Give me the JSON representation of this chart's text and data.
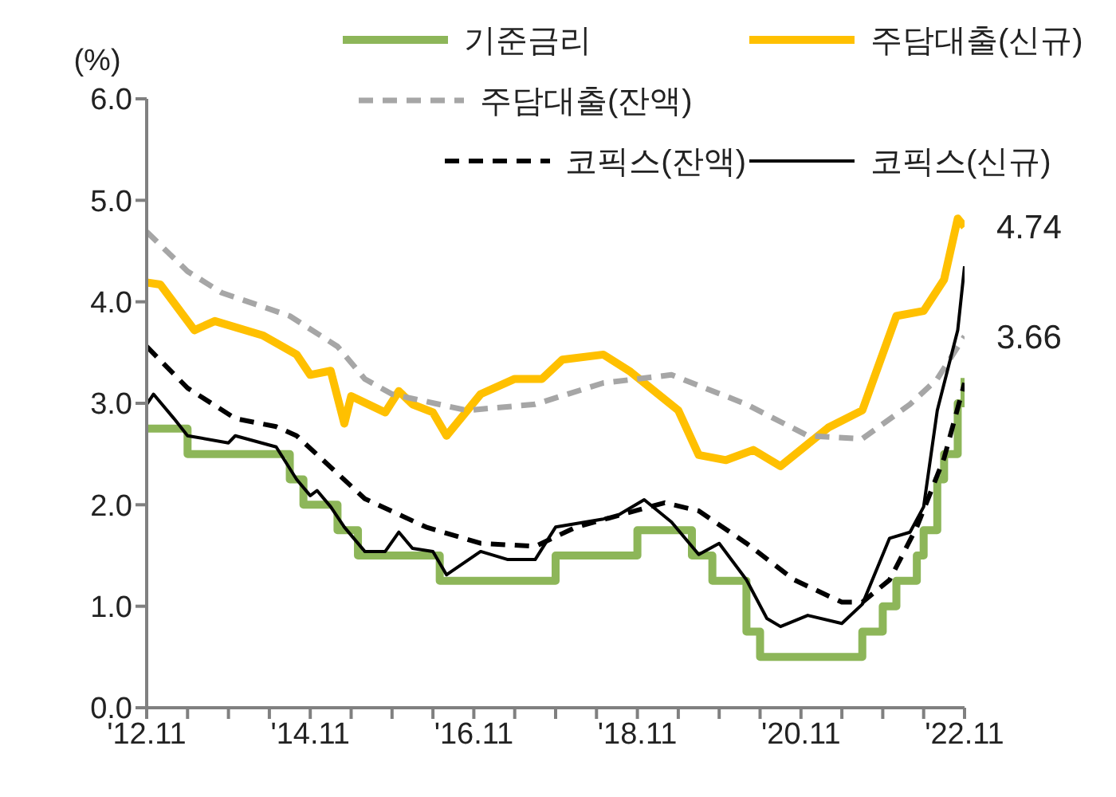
{
  "chart_data": {
    "type": "line",
    "ylabel": "(%)",
    "xlim": [
      "2012-11",
      "2022-11"
    ],
    "xticks": [
      {
        "value": "2012-11",
        "label": "'12.11"
      },
      {
        "value": "2013-05",
        "label": null
      },
      {
        "value": "2013-11",
        "label": null
      },
      {
        "value": "2014-05",
        "label": null
      },
      {
        "value": "2014-11",
        "label": "'14.11"
      },
      {
        "value": "2015-05",
        "label": null
      },
      {
        "value": "2015-11",
        "label": null
      },
      {
        "value": "2016-05",
        "label": null
      },
      {
        "value": "2016-11",
        "label": "'16.11"
      },
      {
        "value": "2017-05",
        "label": null
      },
      {
        "value": "2017-11",
        "label": null
      },
      {
        "value": "2018-05",
        "label": null
      },
      {
        "value": "2018-11",
        "label": "'18.11"
      },
      {
        "value": "2019-05",
        "label": null
      },
      {
        "value": "2019-11",
        "label": null
      },
      {
        "value": "2020-05",
        "label": null
      },
      {
        "value": "2020-11",
        "label": "'20.11"
      },
      {
        "value": "2021-05",
        "label": null
      },
      {
        "value": "2021-11",
        "label": null
      },
      {
        "value": "2022-05",
        "label": null
      },
      {
        "value": "2022-11",
        "label": "'22.11"
      }
    ],
    "ylim": [
      0,
      6
    ],
    "yticks": [
      {
        "value": 0,
        "label": "0.0"
      },
      {
        "value": 1,
        "label": "1.0"
      },
      {
        "value": 2,
        "label": "2.0"
      },
      {
        "value": 3,
        "label": "3.0"
      },
      {
        "value": 4,
        "label": "4.0"
      },
      {
        "value": 5,
        "label": "5.0"
      },
      {
        "value": 6,
        "label": "6.0"
      }
    ],
    "grid": false,
    "legend": "top",
    "marker": "none",
    "series": [
      {
        "name": "기준금리",
        "type": "step",
        "color": "#8db659",
        "line_style": "solid",
        "x": [
          "2012-11",
          "2013-05",
          "2014-08",
          "2014-10",
          "2015-03",
          "2015-06",
          "2016-06",
          "2017-11",
          "2018-11",
          "2019-07",
          "2019-10",
          "2020-03",
          "2020-05",
          "2021-08",
          "2021-11",
          "2022-01",
          "2022-04",
          "2022-05",
          "2022-07",
          "2022-08",
          "2022-10",
          "2022-11"
        ],
        "values": [
          2.75,
          2.5,
          2.25,
          2.0,
          1.75,
          1.5,
          1.25,
          1.5,
          1.75,
          1.5,
          1.25,
          0.75,
          0.5,
          0.75,
          1.0,
          1.25,
          1.5,
          1.75,
          2.25,
          2.5,
          3.0,
          3.25
        ]
      },
      {
        "name": "주담대출(신규)",
        "color": "#ffc000",
        "line_style": "solid",
        "x": [
          "2012-11",
          "2013-01",
          "2013-06",
          "2013-09",
          "2014-04",
          "2014-09",
          "2014-11",
          "2015-02",
          "2015-04",
          "2015-05",
          "2015-10",
          "2015-12",
          "2016-02",
          "2016-05",
          "2016-07",
          "2016-12",
          "2017-05",
          "2017-09",
          "2017-12",
          "2018-06",
          "2018-10",
          "2019-05",
          "2019-08",
          "2019-12",
          "2020-04",
          "2020-08",
          "2021-03",
          "2021-08",
          "2022-01",
          "2022-05",
          "2022-08",
          "2022-10",
          "2022-11"
        ],
        "values": [
          4.19,
          4.17,
          3.72,
          3.81,
          3.67,
          3.48,
          3.28,
          3.32,
          2.8,
          3.07,
          2.91,
          3.12,
          2.99,
          2.91,
          2.68,
          3.09,
          3.24,
          3.24,
          3.43,
          3.48,
          3.31,
          2.93,
          2.49,
          2.44,
          2.54,
          2.38,
          2.76,
          2.93,
          3.86,
          3.91,
          4.22,
          4.82,
          4.74
        ]
      },
      {
        "name": "주담대출(잔액)",
        "color": "#a6a6a6",
        "line_style": "dashed",
        "x": [
          "2012-11",
          "2013-05",
          "2013-10",
          "2014-08",
          "2015-03",
          "2015-07",
          "2015-11",
          "2016-10",
          "2017-08",
          "2018-06",
          "2019-04",
          "2020-03",
          "2020-12",
          "2021-08",
          "2022-03",
          "2022-07",
          "2022-11"
        ],
        "values": [
          4.69,
          4.3,
          4.09,
          3.86,
          3.56,
          3.24,
          3.09,
          2.93,
          2.99,
          3.2,
          3.28,
          2.99,
          2.68,
          2.65,
          2.99,
          3.24,
          3.66
        ]
      },
      {
        "name": "코픽스(잔액)",
        "color": "#000000",
        "line_style": "dashed",
        "x": [
          "2012-11",
          "2013-05",
          "2013-12",
          "2014-06",
          "2014-09",
          "2015-07",
          "2016-04",
          "2016-12",
          "2017-08",
          "2018-02",
          "2019-03",
          "2019-08",
          "2020-03",
          "2020-10",
          "2021-05",
          "2021-08",
          "2021-12",
          "2022-04",
          "2022-08",
          "2022-11"
        ],
        "values": [
          3.56,
          3.15,
          2.85,
          2.77,
          2.68,
          2.06,
          1.78,
          1.62,
          1.59,
          1.78,
          2.02,
          1.94,
          1.62,
          1.26,
          1.04,
          1.04,
          1.26,
          1.78,
          2.46,
          3.2
        ]
      },
      {
        "name": "코픽스(신규)",
        "color": "#000000",
        "line_style": "solid",
        "x": [
          "2012-11",
          "2012-12",
          "2013-03",
          "2013-05",
          "2013-11",
          "2013-12",
          "2014-06",
          "2014-09",
          "2014-11",
          "2014-12",
          "2015-02",
          "2015-04",
          "2015-07",
          "2015-10",
          "2015-12",
          "2016-02",
          "2016-05",
          "2016-07",
          "2016-12",
          "2017-04",
          "2017-08",
          "2017-11",
          "2018-06",
          "2018-08",
          "2018-12",
          "2019-04",
          "2019-08",
          "2019-11",
          "2020-03",
          "2020-06",
          "2020-08",
          "2020-12",
          "2021-05",
          "2021-08",
          "2021-12",
          "2022-03",
          "2022-05",
          "2022-07",
          "2022-10",
          "2022-11"
        ],
        "values": [
          2.99,
          3.09,
          2.85,
          2.68,
          2.61,
          2.68,
          2.57,
          2.25,
          2.09,
          2.14,
          1.98,
          1.78,
          1.54,
          1.54,
          1.73,
          1.57,
          1.54,
          1.31,
          1.54,
          1.46,
          1.46,
          1.78,
          1.86,
          1.89,
          2.05,
          1.83,
          1.51,
          1.62,
          1.26,
          0.88,
          0.8,
          0.91,
          0.83,
          1.02,
          1.67,
          1.73,
          1.98,
          2.93,
          3.72,
          4.35
        ]
      }
    ],
    "annotations": [
      {
        "text": "4.74",
        "x": "2022-11",
        "y": 4.74
      },
      {
        "text": "3.66",
        "x": "2022-11",
        "y": 3.66
      }
    ]
  }
}
